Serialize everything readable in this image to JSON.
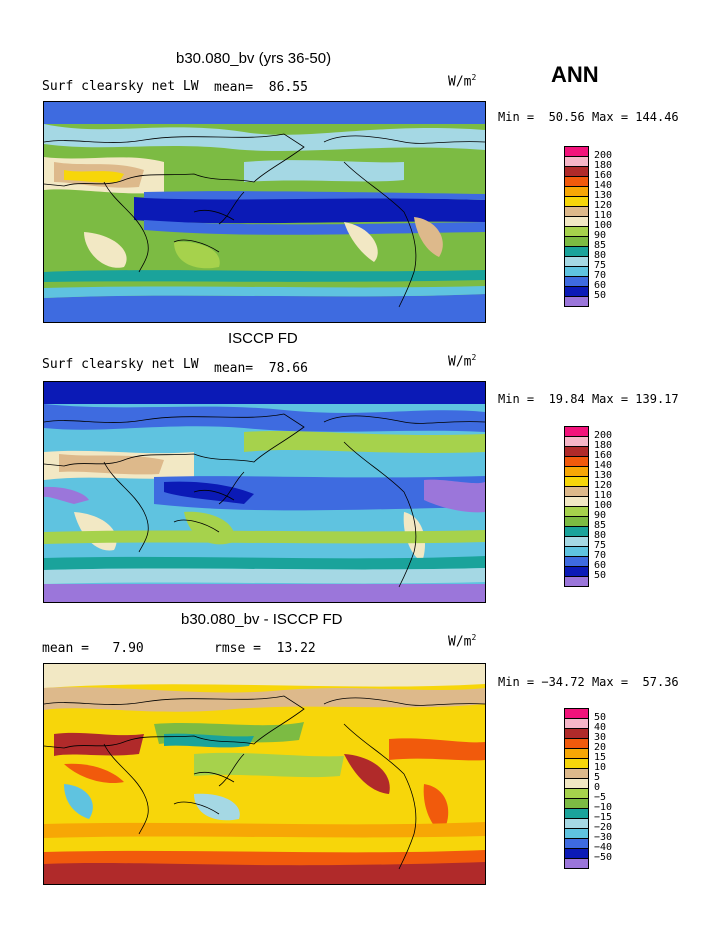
{
  "season": "ANN",
  "units_base": "W/m",
  "units_exp": "2",
  "palette": {
    "c200": "#f2137b",
    "c180": "#f6b6c8",
    "c160": "#b02a2a",
    "c140": "#f15a0c",
    "c130": "#f7a705",
    "c120": "#f7d60a",
    "c110": "#ddb98b",
    "c100": "#f2e8c4",
    "c90": "#a6d24c",
    "c85": "#7cbb43",
    "c80": "#1aa39b",
    "c75": "#a5d8e4",
    "c70": "#5fc3e0",
    "c60": "#3e6be0",
    "c50": "#0b1ab6",
    "cmin": "#9b76da",
    "land_line": "#000000"
  },
  "chart_data": [
    {
      "type": "heatmap",
      "title": "b30.080_bv (yrs 36-50)",
      "field": "Surf clearsky net LW",
      "mean_label": "mean=",
      "mean": "86.55",
      "units": "W/m2",
      "min_label": "Min =",
      "min": "50.56",
      "max_label": "Max =",
      "max": "144.46",
      "levels": [
        "200",
        "180",
        "160",
        "140",
        "130",
        "120",
        "110",
        "100",
        "90",
        "85",
        "80",
        "75",
        "70",
        "60",
        "50"
      ],
      "level_colors": [
        "#f2137b",
        "#f6b6c8",
        "#b02a2a",
        "#f15a0c",
        "#f7a705",
        "#f7d60a",
        "#ddb98b",
        "#f2e8c4",
        "#a6d24c",
        "#7cbb43",
        "#1aa39b",
        "#a5d8e4",
        "#5fc3e0",
        "#3e6be0",
        "#0b1ab6",
        "#9b76da"
      ]
    },
    {
      "type": "heatmap",
      "title": "ISCCP FD",
      "field": "Surf clearsky net LW",
      "mean_label": "mean=",
      "mean": "78.66",
      "units": "W/m2",
      "min_label": "Min =",
      "min": "19.84",
      "max_label": "Max =",
      "max": "139.17",
      "levels": [
        "200",
        "180",
        "160",
        "140",
        "130",
        "120",
        "110",
        "100",
        "90",
        "85",
        "80",
        "75",
        "70",
        "60",
        "50"
      ],
      "level_colors": [
        "#f2137b",
        "#f6b6c8",
        "#b02a2a",
        "#f15a0c",
        "#f7a705",
        "#f7d60a",
        "#ddb98b",
        "#f2e8c4",
        "#a6d24c",
        "#7cbb43",
        "#1aa39b",
        "#a5d8e4",
        "#5fc3e0",
        "#3e6be0",
        "#0b1ab6",
        "#9b76da"
      ]
    },
    {
      "type": "heatmap",
      "title": "b30.080_bv - ISCCP FD",
      "field": "",
      "mean_label": "mean =",
      "mean": "7.90",
      "rmse_label": "rmse =",
      "rmse": "13.22",
      "units": "W/m2",
      "min_label": "Min =",
      "min": "−34.72",
      "max_label": "Max =",
      "max": "57.36",
      "levels": [
        "50",
        "40",
        "30",
        "20",
        "15",
        "10",
        "5",
        "0",
        "−5",
        "−10",
        "−15",
        "−20",
        "−30",
        "−40",
        "−50"
      ],
      "level_colors": [
        "#f2137b",
        "#f6b6c8",
        "#b02a2a",
        "#f15a0c",
        "#f7a705",
        "#f7d60a",
        "#ddb98b",
        "#f2e8c4",
        "#a6d24c",
        "#7cbb43",
        "#1aa39b",
        "#a5d8e4",
        "#5fc3e0",
        "#3e6be0",
        "#0b1ab6",
        "#9b76da"
      ]
    }
  ]
}
